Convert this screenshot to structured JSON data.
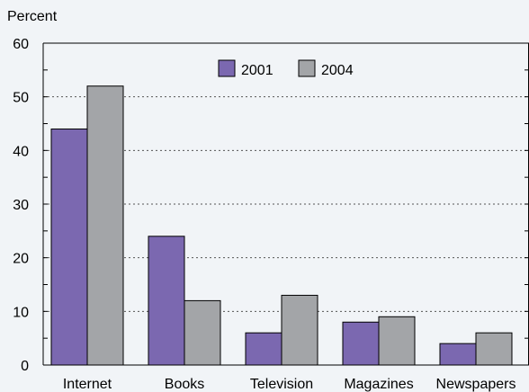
{
  "chart_data": {
    "type": "bar",
    "ylabel": "Percent",
    "xlabel": "",
    "ylim": [
      0,
      60
    ],
    "yticks": [
      0,
      10,
      20,
      30,
      40,
      50,
      60
    ],
    "categories": [
      "Internet",
      "Books",
      "Television",
      "Magazines",
      "Newspapers"
    ],
    "series": [
      {
        "name": "2001",
        "color": "#7b68b0",
        "values": [
          44,
          24,
          6,
          8,
          4
        ]
      },
      {
        "name": "2004",
        "color": "#a3a5a8",
        "values": [
          52,
          12,
          13,
          9,
          6
        ]
      }
    ],
    "grid": true,
    "grid_style": "dotted",
    "legend_position": "top-center",
    "background": "#f1f4f7"
  }
}
